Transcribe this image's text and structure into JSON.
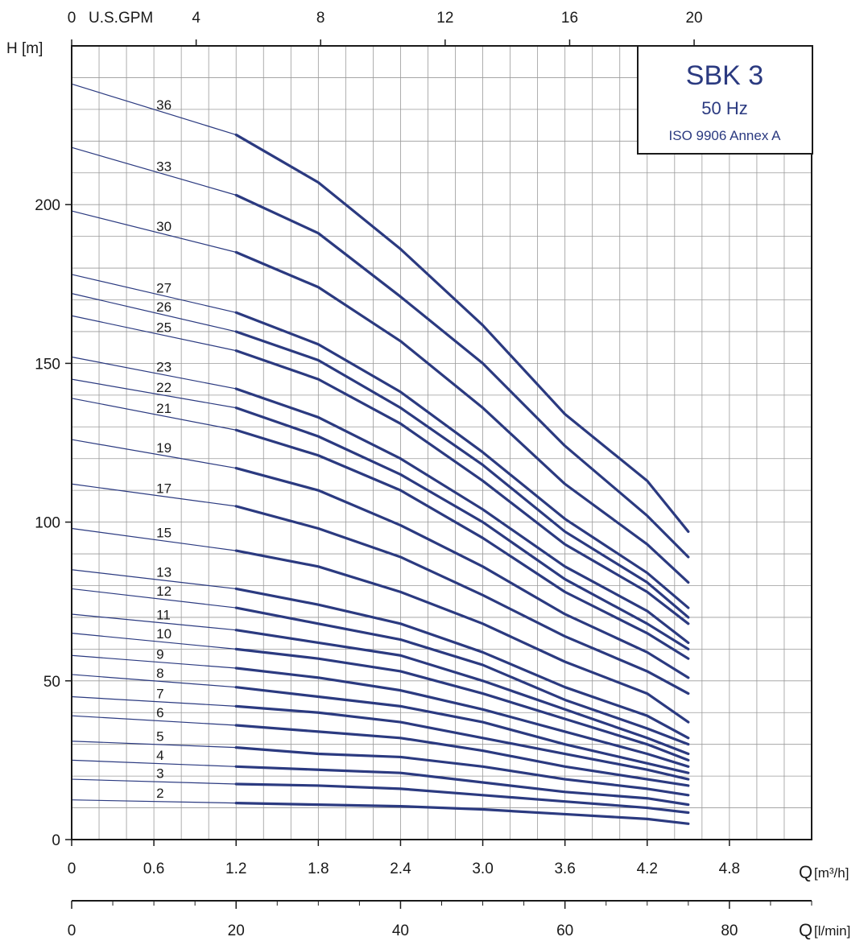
{
  "chart_data": {
    "type": "line",
    "title": "SBK 3",
    "subtitle": "50 Hz",
    "note": "ISO 9906 Annex A",
    "ylabel": "H [m]",
    "xlabel_q_prefix": "Q",
    "xlabel_q_unit": "[m³/h]",
    "xlabel_l_prefix": "Q",
    "xlabel_l_unit": "[l/min]",
    "top_axis_label": "U.S.GPM",
    "xlim": [
      0,
      5.4
    ],
    "ylim": [
      0,
      250
    ],
    "grid": true,
    "x_ticks": [
      "0",
      "0.6",
      "1.2",
      "1.8",
      "2.4",
      "3.0",
      "3.6",
      "4.2",
      "4.8"
    ],
    "x_tick_values": [
      0,
      0.6,
      1.2,
      1.8,
      2.4,
      3.0,
      3.6,
      4.2,
      4.8
    ],
    "y_ticks": [
      "0",
      "50",
      "100",
      "150",
      "200"
    ],
    "y_tick_values": [
      0,
      50,
      100,
      150,
      200
    ],
    "gpm_ticks": [
      "0",
      "4",
      "8",
      "12",
      "16",
      "20"
    ],
    "gpm_tick_values": [
      0,
      4,
      8,
      12,
      16,
      20
    ],
    "lmin_ticks": [
      "0",
      "20",
      "40",
      "60",
      "80"
    ],
    "lmin_tick_values": [
      0,
      20,
      40,
      60,
      80
    ],
    "operating_range": [
      1.2,
      4.5
    ],
    "series": [
      {
        "name": "36",
        "x": [
          0,
          1.2,
          1.8,
          2.4,
          3.0,
          3.6,
          4.2,
          4.5
        ],
        "y": [
          238,
          222,
          207,
          186,
          162,
          134,
          113,
          97
        ]
      },
      {
        "name": "33",
        "x": [
          0,
          1.2,
          1.8,
          2.4,
          3.0,
          3.6,
          4.2,
          4.5
        ],
        "y": [
          218,
          203,
          191,
          171,
          150,
          124,
          102,
          89
        ]
      },
      {
        "name": "30",
        "x": [
          0,
          1.2,
          1.8,
          2.4,
          3.0,
          3.6,
          4.2,
          4.5
        ],
        "y": [
          198,
          185,
          174,
          157,
          136,
          112,
          93,
          81
        ]
      },
      {
        "name": "27",
        "x": [
          0,
          1.2,
          1.8,
          2.4,
          3.0,
          3.6,
          4.2,
          4.5
        ],
        "y": [
          178,
          166,
          156,
          141,
          122,
          101,
          84,
          73
        ]
      },
      {
        "name": "26",
        "x": [
          0,
          1.2,
          1.8,
          2.4,
          3.0,
          3.6,
          4.2,
          4.5
        ],
        "y": [
          172,
          160,
          151,
          136,
          118,
          97,
          81,
          70
        ]
      },
      {
        "name": "25",
        "x": [
          0,
          1.2,
          1.8,
          2.4,
          3.0,
          3.6,
          4.2,
          4.5
        ],
        "y": [
          165,
          154,
          145,
          131,
          113,
          93,
          78,
          68
        ]
      },
      {
        "name": "23",
        "x": [
          0,
          1.2,
          1.8,
          2.4,
          3.0,
          3.6,
          4.2,
          4.5
        ],
        "y": [
          152,
          142,
          133,
          120,
          104,
          86,
          72,
          62
        ]
      },
      {
        "name": "22",
        "x": [
          0,
          1.2,
          1.8,
          2.4,
          3.0,
          3.6,
          4.2,
          4.5
        ],
        "y": [
          145,
          136,
          127,
          115,
          100,
          82,
          68,
          60
        ]
      },
      {
        "name": "21",
        "x": [
          0,
          1.2,
          1.8,
          2.4,
          3.0,
          3.6,
          4.2,
          4.5
        ],
        "y": [
          139,
          129,
          121,
          110,
          95,
          78,
          65,
          57
        ]
      },
      {
        "name": "19",
        "x": [
          0,
          1.2,
          1.8,
          2.4,
          3.0,
          3.6,
          4.2,
          4.5
        ],
        "y": [
          126,
          117,
          110,
          99,
          86,
          71,
          59,
          51
        ]
      },
      {
        "name": "17",
        "x": [
          0,
          1.2,
          1.8,
          2.4,
          3.0,
          3.6,
          4.2,
          4.5
        ],
        "y": [
          112,
          105,
          98,
          89,
          77,
          64,
          53,
          46
        ]
      },
      {
        "name": "15",
        "x": [
          0,
          1.2,
          1.8,
          2.4,
          3.0,
          3.6,
          4.2,
          4.5
        ],
        "y": [
          98,
          91,
          86,
          78,
          68,
          56,
          46,
          37
        ]
      },
      {
        "name": "13",
        "x": [
          0,
          1.2,
          1.8,
          2.4,
          3.0,
          3.6,
          4.2,
          4.5
        ],
        "y": [
          85,
          79,
          74,
          68,
          59,
          48,
          39,
          32
        ]
      },
      {
        "name": "12",
        "x": [
          0,
          1.2,
          1.8,
          2.4,
          3.0,
          3.6,
          4.2,
          4.5
        ],
        "y": [
          79,
          73,
          68,
          63,
          55,
          44,
          35,
          30
        ]
      },
      {
        "name": "11",
        "x": [
          0,
          1.2,
          1.8,
          2.4,
          3.0,
          3.6,
          4.2,
          4.5
        ],
        "y": [
          71,
          66,
          62,
          58,
          50,
          41,
          32,
          27
        ]
      },
      {
        "name": "10",
        "x": [
          0,
          1.2,
          1.8,
          2.4,
          3.0,
          3.6,
          4.2,
          4.5
        ],
        "y": [
          65,
          60,
          57,
          53,
          46,
          38,
          30,
          25
        ]
      },
      {
        "name": "9",
        "x": [
          0,
          1.2,
          1.8,
          2.4,
          3.0,
          3.6,
          4.2,
          4.5
        ],
        "y": [
          58,
          54,
          51,
          47,
          41,
          34,
          27,
          23
        ]
      },
      {
        "name": "8",
        "x": [
          0,
          1.2,
          1.8,
          2.4,
          3.0,
          3.6,
          4.2,
          4.5
        ],
        "y": [
          52,
          48,
          45,
          42,
          37,
          30,
          24,
          21
        ]
      },
      {
        "name": "7",
        "x": [
          0,
          1.2,
          1.8,
          2.4,
          3.0,
          3.6,
          4.2,
          4.5
        ],
        "y": [
          45,
          42,
          40,
          37,
          32,
          27,
          22,
          19
        ]
      },
      {
        "name": "6",
        "x": [
          0,
          1.2,
          1.8,
          2.4,
          3.0,
          3.6,
          4.2,
          4.5
        ],
        "y": [
          39,
          36,
          34,
          32,
          28,
          23,
          19,
          17
        ]
      },
      {
        "name": "5",
        "x": [
          0,
          1.2,
          1.8,
          2.4,
          3.0,
          3.6,
          4.2,
          4.5
        ],
        "y": [
          31,
          29,
          27,
          26,
          23,
          19,
          16,
          14
        ]
      },
      {
        "name": "4",
        "x": [
          0,
          1.2,
          1.8,
          2.4,
          3.0,
          3.6,
          4.2,
          4.5
        ],
        "y": [
          25,
          23,
          22,
          21,
          18,
          15,
          13,
          11
        ]
      },
      {
        "name": "3",
        "x": [
          0,
          1.2,
          1.8,
          2.4,
          3.0,
          3.6,
          4.2,
          4.5
        ],
        "y": [
          19,
          17.5,
          17,
          16,
          14,
          12,
          10,
          8.5
        ]
      },
      {
        "name": "2",
        "x": [
          0,
          1.2,
          1.8,
          2.4,
          3.0,
          3.6,
          4.2,
          4.5
        ],
        "y": [
          12.5,
          11.5,
          11,
          10.5,
          9.5,
          8,
          6.5,
          5
        ]
      }
    ],
    "colors": {
      "curve": "#2b3a80",
      "grid": "#9a9a9a",
      "axis": "#1a1a1a",
      "title": "#2b3a80"
    }
  }
}
